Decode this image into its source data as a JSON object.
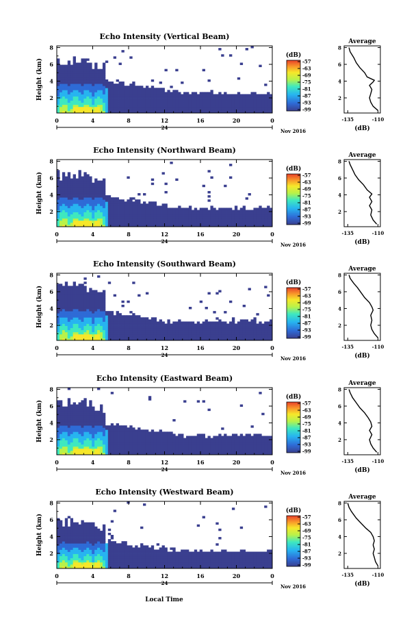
{
  "figure": {
    "xlabel_bottom": "Local Time",
    "date_label": "Nov 2016",
    "day_label": "24"
  },
  "chart_data": [
    {
      "type": "heatmap",
      "title": "Echo Intensity (Vertical Beam)",
      "ylabel": "Height (km)",
      "x_ticks": [
        "0",
        "4",
        "8",
        "12",
        "16",
        "20",
        "0"
      ],
      "y_ticks": [
        "2",
        "4",
        "6",
        "8"
      ],
      "colorbar": {
        "label": "(dB)",
        "ticks": [
          "-57",
          "-63",
          "-69",
          "-75",
          "-81",
          "-87",
          "-93",
          "-99"
        ]
      },
      "profile": {
        "title": "Average",
        "xlabel": "(dB)",
        "x_ticks": [
          "-135",
          "-110"
        ],
        "y_ticks": [
          "2",
          "4",
          "6",
          "8"
        ]
      },
      "extent": {
        "x": [
          0,
          24
        ],
        "y": [
          0.2,
          8.2
        ]
      },
      "params": {
        "core_end": 5.2,
        "base_h": 6.3,
        "base_slope": 0.16,
        "base_min": 2.5,
        "low_h": 2.6
      },
      "avg_profile": [
        [
          -110,
          0.5
        ],
        [
          -114,
          1.0
        ],
        [
          -116,
          1.5
        ],
        [
          -117,
          2.0
        ],
        [
          -116,
          2.5
        ],
        [
          -115,
          3.0
        ],
        [
          -117,
          3.5
        ],
        [
          -114,
          3.9
        ],
        [
          -113,
          4.1
        ],
        [
          -119,
          4.5
        ],
        [
          -121,
          5.0
        ],
        [
          -125,
          5.6
        ],
        [
          -128,
          6.2
        ],
        [
          -130,
          6.8
        ],
        [
          -133,
          7.5
        ],
        [
          -134,
          8.0
        ]
      ]
    },
    {
      "type": "heatmap",
      "title": "Echo Intensity (Northward Beam)",
      "ylabel": "Height (km)",
      "x_ticks": [
        "0",
        "4",
        "8",
        "12",
        "16",
        "20",
        "0"
      ],
      "y_ticks": [
        "2",
        "4",
        "6",
        "8"
      ],
      "colorbar": {
        "label": "(dB)",
        "ticks": [
          "-57",
          "-63",
          "-69",
          "-75",
          "-81",
          "-87",
          "-93",
          "-99"
        ]
      },
      "profile": {
        "title": "Average",
        "xlabel": "(dB)",
        "x_ticks": [
          "-135",
          "-110"
        ],
        "y_ticks": [
          "2",
          "4",
          "6",
          "8"
        ]
      },
      "extent": {
        "x": [
          0,
          24
        ],
        "y": [
          0.2,
          8.2
        ]
      },
      "params": {
        "core_end": 5.2,
        "base_h": 6.2,
        "base_slope": 0.17,
        "base_min": 2.3,
        "low_h": 2.4
      },
      "avg_profile": [
        [
          -111,
          0.5
        ],
        [
          -114,
          1.0
        ],
        [
          -116,
          1.6
        ],
        [
          -115,
          2.2
        ],
        [
          -117,
          2.7
        ],
        [
          -115,
          3.2
        ],
        [
          -117,
          3.7
        ],
        [
          -115,
          4.1
        ],
        [
          -119,
          4.6
        ],
        [
          -122,
          5.2
        ],
        [
          -126,
          5.8
        ],
        [
          -129,
          6.4
        ],
        [
          -131,
          7.0
        ],
        [
          -133,
          7.6
        ],
        [
          -134,
          8.0
        ]
      ]
    },
    {
      "type": "heatmap",
      "title": "Echo Intensity (Southward Beam)",
      "ylabel": "Height (km)",
      "x_ticks": [
        "0",
        "4",
        "8",
        "12",
        "16",
        "20",
        "0"
      ],
      "y_ticks": [
        "2",
        "4",
        "6",
        "8"
      ],
      "colorbar": {
        "label": "(dB)",
        "ticks": [
          "-57",
          "-63",
          "-69",
          "-75",
          "-81",
          "-87",
          "-93",
          "-99"
        ]
      },
      "profile": {
        "title": "Average",
        "xlabel": "(dB)",
        "x_ticks": [
          "-135",
          "-110"
        ],
        "y_ticks": [
          "2",
          "4",
          "6",
          "8"
        ]
      },
      "extent": {
        "x": [
          0,
          24
        ],
        "y": [
          0.2,
          8.2
        ]
      },
      "params": {
        "core_end": 5.2,
        "base_h": 6.5,
        "base_slope": 0.18,
        "base_min": 2.3,
        "low_h": 2.2
      },
      "avg_profile": [
        [
          -110,
          0.5
        ],
        [
          -113,
          1.0
        ],
        [
          -115,
          1.5
        ],
        [
          -116,
          2.0
        ],
        [
          -115,
          2.6
        ],
        [
          -116,
          3.2
        ],
        [
          -114,
          3.8
        ],
        [
          -115,
          4.2
        ],
        [
          -117,
          4.7
        ],
        [
          -121,
          5.3
        ],
        [
          -124,
          5.9
        ],
        [
          -127,
          6.5
        ],
        [
          -130,
          7.0
        ],
        [
          -133,
          7.6
        ],
        [
          -134,
          8.0
        ]
      ]
    },
    {
      "type": "heatmap",
      "title": "Echo Intensity (Eastward Beam)",
      "ylabel": "Height (km)",
      "x_ticks": [
        "0",
        "4",
        "8",
        "12",
        "16",
        "20",
        "0"
      ],
      "y_ticks": [
        "2",
        "4",
        "6",
        "8"
      ],
      "colorbar": {
        "label": "(dB)",
        "ticks": [
          "-57",
          "-63",
          "-69",
          "-75",
          "-81",
          "-87",
          "-93",
          "-99"
        ]
      },
      "profile": {
        "title": "Average",
        "xlabel": "(dB)",
        "x_ticks": [
          "-135",
          "-110"
        ],
        "y_ticks": [
          "2",
          "4",
          "6",
          "8"
        ]
      },
      "extent": {
        "x": [
          0,
          24
        ],
        "y": [
          0.2,
          8.2
        ]
      },
      "params": {
        "core_end": 5.2,
        "base_h": 6.3,
        "base_slope": 0.17,
        "base_min": 2.4,
        "low_h": 2.5
      },
      "avg_profile": [
        [
          -111,
          0.5
        ],
        [
          -114,
          1.0
        ],
        [
          -116,
          1.5
        ],
        [
          -117,
          2.0
        ],
        [
          -115,
          2.6
        ],
        [
          -117,
          3.1
        ],
        [
          -115,
          3.6
        ],
        [
          -116,
          4.1
        ],
        [
          -118,
          4.6
        ],
        [
          -121,
          5.2
        ],
        [
          -125,
          5.8
        ],
        [
          -128,
          6.4
        ],
        [
          -131,
          7.0
        ],
        [
          -133,
          7.6
        ],
        [
          -134,
          8.0
        ]
      ]
    },
    {
      "type": "heatmap",
      "title": "Echo Intensity (Westward Beam)",
      "ylabel": "Height (km)",
      "x_ticks": [
        "0",
        "4",
        "8",
        "12",
        "16",
        "20",
        "0"
      ],
      "y_ticks": [
        "2",
        "4",
        "6",
        "8"
      ],
      "colorbar": {
        "label": "(dB)",
        "ticks": [
          "-57",
          "-63",
          "-69",
          "-75",
          "-81",
          "-87",
          "-93",
          "-99"
        ]
      },
      "profile": {
        "title": "Average",
        "xlabel": "(dB)",
        "x_ticks": [
          "-135",
          "-110"
        ],
        "y_ticks": [
          "2",
          "4",
          "6",
          "8"
        ]
      },
      "extent": {
        "x": [
          0,
          24
        ],
        "y": [
          0.2,
          8.2
        ]
      },
      "params": {
        "core_end": 5.2,
        "base_h": 5.6,
        "base_slope": 0.15,
        "base_min": 2.2,
        "low_h": 2.0
      },
      "avg_profile": [
        [
          -110,
          0.5
        ],
        [
          -112,
          1.0
        ],
        [
          -113,
          1.5
        ],
        [
          -114,
          2.0
        ],
        [
          -113,
          2.5
        ],
        [
          -114,
          3.0
        ],
        [
          -113,
          3.5
        ],
        [
          -114,
          4.0
        ],
        [
          -116,
          4.5
        ],
        [
          -120,
          5.0
        ],
        [
          -124,
          5.6
        ],
        [
          -128,
          6.2
        ],
        [
          -130,
          6.6
        ],
        [
          -132,
          7.0
        ],
        [
          -134,
          7.5
        ],
        [
          -135,
          8.0
        ]
      ]
    }
  ]
}
